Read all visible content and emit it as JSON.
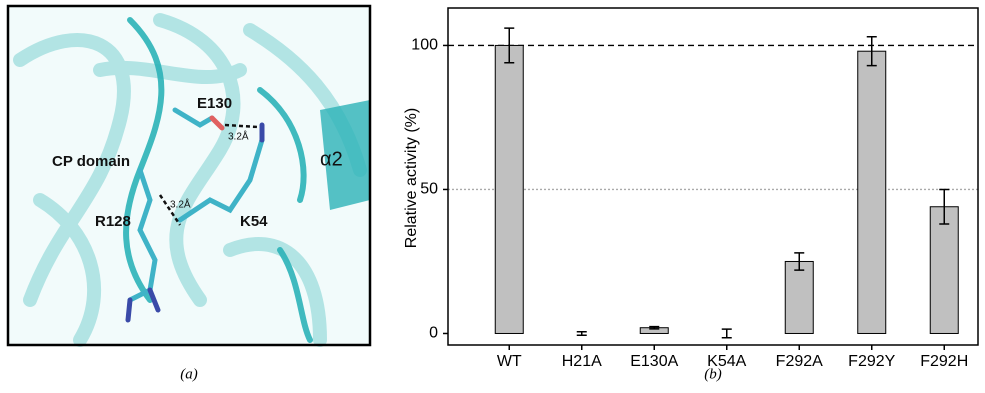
{
  "panel_a": {
    "caption": "(a)",
    "labels": [
      "E130",
      "3.2Å",
      "CP domain",
      "α2",
      "R128",
      "3.2Å",
      "K54"
    ]
  },
  "chart_data": {
    "type": "bar",
    "caption": "(b)",
    "y_label": "Relative activity (%)",
    "categories": [
      "WT",
      "H21A",
      "E130A",
      "K54A",
      "F292A",
      "F292Y",
      "F292H"
    ],
    "values": [
      100,
      0,
      2,
      0,
      25,
      98,
      44
    ],
    "errors": [
      6,
      0.6,
      0.4,
      1.5,
      3,
      5,
      6
    ],
    "color": "#c0c0c0",
    "ylim": [
      -4,
      113
    ],
    "yticks": [
      0,
      50,
      100
    ],
    "reference_lines": [
      {
        "value": 100,
        "color": "#000000",
        "dash": "6 4"
      },
      {
        "value": 50,
        "color": "#aaaaaa",
        "dash": "2 2"
      }
    ]
  }
}
